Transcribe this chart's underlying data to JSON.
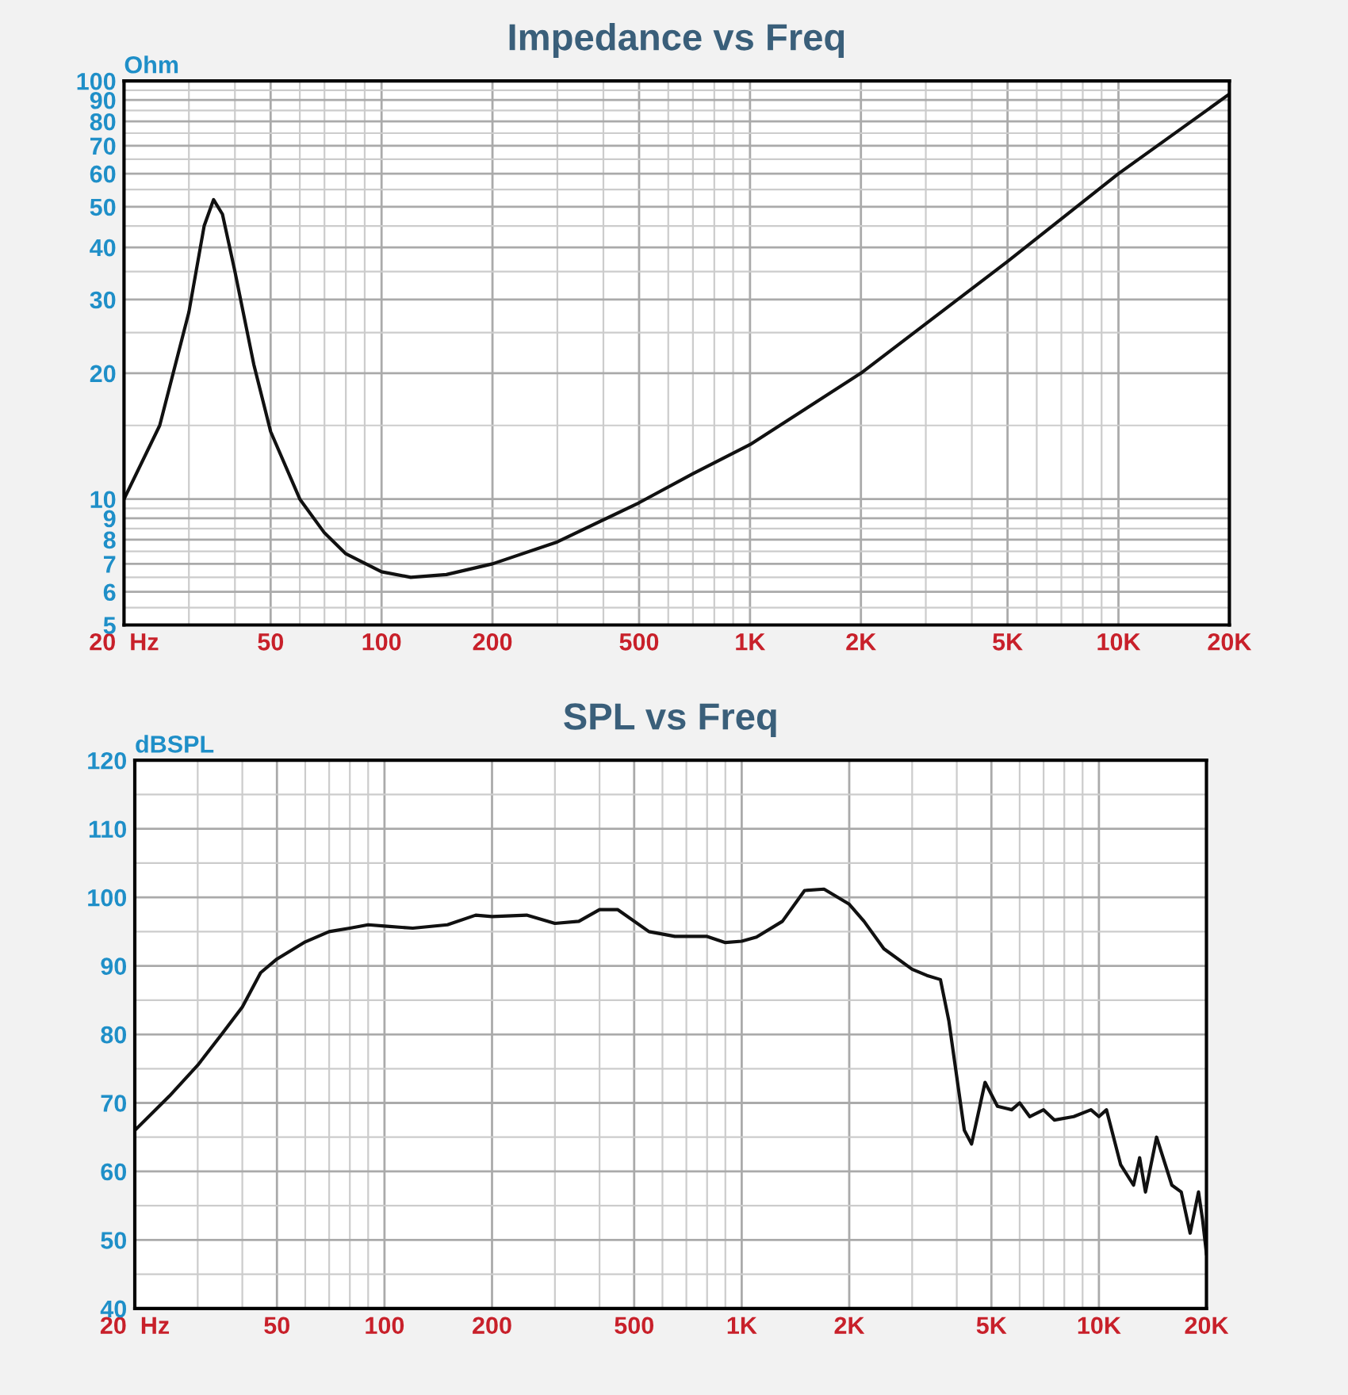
{
  "chart_data": [
    {
      "type": "line",
      "title": "Impedance vs Freq",
      "ylabel": "Ohm",
      "log": "xy",
      "grid": true,
      "x": [
        20,
        25,
        30,
        33,
        35,
        37,
        40,
        45,
        50,
        60,
        70,
        80,
        100,
        120,
        150,
        200,
        300,
        500,
        700,
        1000,
        2000,
        5000,
        10000,
        20000
      ],
      "series": [
        {
          "color": "#111111",
          "values": [
            10,
            15,
            28,
            45,
            52,
            48,
            35,
            21,
            14.5,
            10,
            8.3,
            7.4,
            6.7,
            6.5,
            6.6,
            7.0,
            7.9,
            9.8,
            11.5,
            13.5,
            20,
            37,
            60,
            93
          ]
        }
      ],
      "xlim": [
        20,
        20000
      ],
      "ylim": [
        5,
        100
      ],
      "xticks": [
        {
          "value": 20,
          "label": "20  Hz"
        },
        50,
        100,
        200,
        500,
        {
          "value": 1000,
          "label": "1K"
        },
        {
          "value": 2000,
          "label": "2K"
        },
        {
          "value": 5000,
          "label": "5K"
        },
        {
          "value": 10000,
          "label": "10K"
        },
        {
          "value": 20000,
          "label": "20K"
        }
      ],
      "yticks": [
        5,
        6,
        7,
        8,
        9,
        10,
        20,
        30,
        40,
        50,
        60,
        70,
        80,
        90,
        100
      ]
    },
    {
      "type": "line",
      "title": "SPL vs Freq",
      "ylabel": "dBSPL",
      "log": "x",
      "grid": true,
      "x": [
        20,
        25,
        30,
        35,
        40,
        45,
        50,
        60,
        70,
        80,
        90,
        100,
        120,
        150,
        180,
        200,
        250,
        300,
        350,
        400,
        450,
        550,
        650,
        800,
        900,
        1000,
        1100,
        1300,
        1500,
        1700,
        2000,
        2200,
        2500,
        3000,
        3300,
        3600,
        3800,
        4200,
        4400,
        4800,
        5200,
        5700,
        6000,
        6400,
        7000,
        7500,
        8500,
        9500,
        10000,
        10500,
        11500,
        12500,
        13000,
        13500,
        14500,
        16000,
        17000,
        18000,
        19000,
        19500,
        20000
      ],
      "series": [
        {
          "color": "#111111",
          "values": [
            66,
            71,
            75.5,
            80,
            84,
            89,
            91,
            93.5,
            95,
            95.5,
            96,
            95.8,
            95.5,
            96,
            97.4,
            97.2,
            97.4,
            96.2,
            96.5,
            98.2,
            98.2,
            95,
            94.3,
            94.3,
            93.4,
            93.6,
            94.2,
            96.5,
            101,
            101.2,
            99,
            96.5,
            92.5,
            89.5,
            88.6,
            88,
            82,
            66,
            64,
            73,
            69.5,
            69,
            70,
            68,
            69,
            67.5,
            68,
            69,
            68,
            69,
            61,
            58,
            62,
            57,
            65,
            58,
            57,
            51,
            57,
            53,
            48
          ]
        }
      ],
      "xlim": [
        20,
        20000
      ],
      "ylim": [
        40,
        120
      ],
      "xticks": [
        {
          "value": 20,
          "label": "20  Hz"
        },
        50,
        100,
        200,
        500,
        {
          "value": 1000,
          "label": "1K"
        },
        {
          "value": 2000,
          "label": "2K"
        },
        {
          "value": 5000,
          "label": "5K"
        },
        {
          "value": 10000,
          "label": "10K"
        },
        {
          "value": 20000,
          "label": "20K"
        }
      ],
      "yticks": [
        40,
        50,
        60,
        70,
        80,
        90,
        100,
        110,
        120
      ]
    }
  ]
}
